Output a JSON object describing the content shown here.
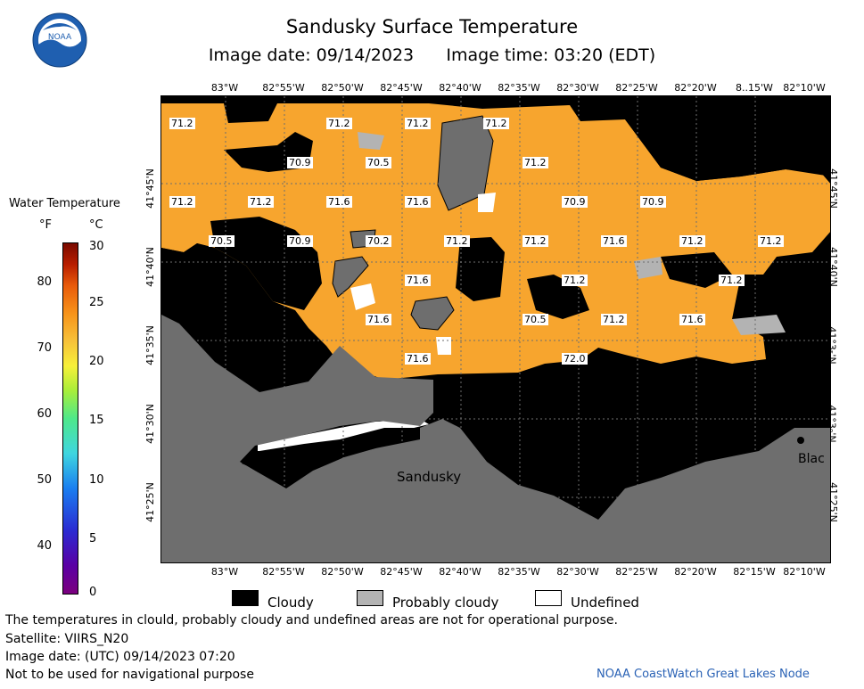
{
  "header": {
    "title": "Sandusky Surface Temperature",
    "subtitle": "Image date: 09/14/2023      Image time: 03:20 (EDT)",
    "logo_text": "NOAA"
  },
  "colorbar": {
    "title": "Water Temperature",
    "unit_f": "°F",
    "unit_c": "°C",
    "f_ticks": [
      "80",
      "70",
      "60",
      "50",
      "40"
    ],
    "c_ticks": [
      "30",
      "25",
      "20",
      "15",
      "10",
      "5",
      "0"
    ]
  },
  "map": {
    "lon_top": [
      "83°W",
      "82°55'W",
      "82°50'W",
      "82°45'W",
      "82°40'W",
      "82°35'W",
      "82°30'W",
      "82°25'W",
      "82°20'W",
      "8..15'W",
      "82°10'W"
    ],
    "lon_bottom": [
      "83°W",
      "82°55'W",
      "82°50'W",
      "82°45'W",
      "82°40'W",
      "82°35'W",
      "82°30'W",
      "82°25'W",
      "82°20'W",
      "82°15'W",
      "82°10'W"
    ],
    "lat_left": [
      "41°45'N",
      "41°40'N",
      "41°35'N",
      "41°30'N",
      "41°25'N"
    ],
    "lat_right": [
      "41°45'N",
      "41°40'N",
      "41°3₅'N",
      "41°3₀'N",
      "41°25'N"
    ],
    "place_sandusky": "Sandusky",
    "place_black": "Blac",
    "temps": [
      "71.2",
      "71.2",
      "71.2",
      "71.2",
      "70.9",
      "70.5",
      "71.2",
      "71.2",
      "71.6",
      "71.6",
      "70.9",
      "70.9",
      "70.5",
      "70.9",
      "70.2",
      "71.2",
      "71.2",
      "71.6",
      "71.2",
      "71.2",
      "71.6",
      "71.2",
      "71.2",
      "71.6",
      "71.2",
      "70.5",
      "71.2",
      "71.6",
      "71.6",
      "72.0"
    ],
    "colors": {
      "water": "#f7a52e",
      "cloud": "#000000",
      "probably_cloudy": "#b3b3b3",
      "undefined": "#ffffff",
      "land": "#6e6e6e",
      "grid": "#6e6e6e"
    }
  },
  "legend": {
    "cloudy": "Cloudy",
    "probably_cloudy": "Probably cloudy",
    "undefined": "Undefined"
  },
  "footer": {
    "note": "The temperatures in clould, probably cloudy and undefined areas are not for operational purpose.",
    "satellite": "Satellite: VIIRS_N20",
    "utc_date": "Image date: (UTC) 09/14/2023  07:20",
    "nav_warning": "Not to be used for navigational purpose",
    "credit": "NOAA CoastWatch Great Lakes Node"
  }
}
